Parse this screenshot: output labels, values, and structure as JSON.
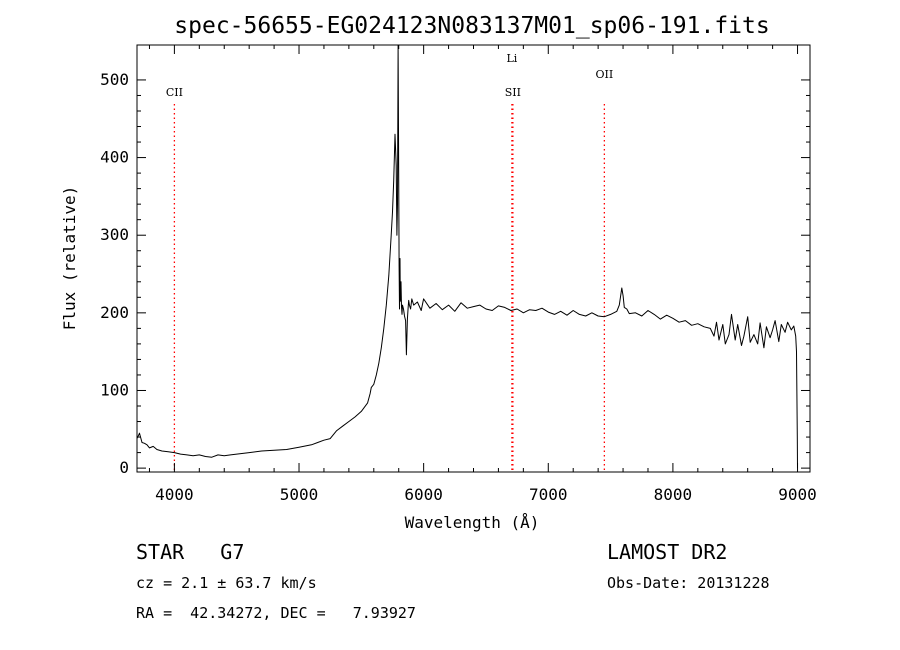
{
  "chart_data": {
    "type": "line",
    "title": "spec-56655-EG024123N083137M01_sp06-191.fits",
    "xlabel": "Wavelength (Å)",
    "ylabel": "Flux (relative)",
    "xlim": [
      3700,
      9100
    ],
    "ylim": [
      -5,
      545
    ],
    "xticks": [
      4000,
      5000,
      6000,
      7000,
      8000,
      9000
    ],
    "yticks": [
      0,
      100,
      200,
      300,
      400,
      500
    ],
    "grid": false,
    "line_color": "#000000",
    "marker_color": "#ff0000",
    "series": [
      {
        "x": [
          3700,
          3720,
          3740,
          3760,
          3780,
          3800,
          3830,
          3860,
          3900,
          3950,
          4000,
          4050,
          4100,
          4150,
          4200,
          4250,
          4300,
          4350,
          4400,
          4450,
          4500,
          4600,
          4700,
          4800,
          4900,
          5000,
          5100,
          5150,
          5200,
          5250,
          5300,
          5350,
          5400,
          5450,
          5500,
          5550,
          5570,
          5580,
          5600,
          5620,
          5640,
          5660,
          5680,
          5700,
          5720,
          5740,
          5750,
          5760,
          5770,
          5780,
          5785,
          5790,
          5795,
          5800,
          5803,
          5806,
          5810,
          5813,
          5818,
          5822,
          5826,
          5830,
          5838,
          5846,
          5855,
          5862,
          5870,
          5876,
          5880,
          5886,
          5895,
          5905,
          5920,
          5950,
          5980,
          6000,
          6050,
          6100,
          6150,
          6200,
          6250,
          6300,
          6350,
          6400,
          6450,
          6500,
          6550,
          6600,
          6650,
          6700,
          6750,
          6800,
          6850,
          6900,
          6950,
          7000,
          7050,
          7100,
          7150,
          7200,
          7250,
          7300,
          7350,
          7400,
          7450,
          7500,
          7550,
          7570,
          7590,
          7600,
          7610,
          7630,
          7650,
          7700,
          7750,
          7800,
          7850,
          7900,
          7950,
          8000,
          8050,
          8100,
          8150,
          8200,
          8250,
          8300,
          8330,
          8350,
          8370,
          8400,
          8420,
          8450,
          8470,
          8500,
          8520,
          8550,
          8570,
          8600,
          8620,
          8650,
          8680,
          8700,
          8730,
          8750,
          8780,
          8800,
          8820,
          8850,
          8870,
          8900,
          8920,
          8950,
          8970,
          8985,
          8992,
          8998,
          9000
        ],
        "y": [
          38,
          45,
          33,
          32,
          30,
          26,
          28,
          24,
          22,
          21,
          20,
          18,
          17,
          16,
          17,
          15,
          14,
          17,
          16,
          17,
          18,
          20,
          22,
          23,
          24,
          27,
          30,
          33,
          36,
          38,
          48,
          54,
          60,
          66,
          73,
          84,
          96,
          104,
          108,
          120,
          135,
          155,
          180,
          210,
          248,
          300,
          330,
          370,
          430,
          390,
          300,
          340,
          545,
          380,
          260,
          205,
          270,
          215,
          240,
          208,
          198,
          210,
          205,
          196,
          190,
          146,
          192,
          208,
          216,
          210,
          205,
          218,
          210,
          214,
          203,
          218,
          206,
          212,
          204,
          210,
          202,
          213,
          206,
          208,
          210,
          205,
          203,
          209,
          207,
          203,
          205,
          200,
          204,
          203,
          206,
          201,
          198,
          202,
          197,
          203,
          198,
          196,
          200,
          196,
          195,
          198,
          202,
          210,
          232,
          222,
          207,
          205,
          199,
          200,
          196,
          203,
          198,
          192,
          197,
          193,
          188,
          190,
          184,
          186,
          182,
          180,
          170,
          188,
          165,
          185,
          160,
          172,
          198,
          165,
          185,
          158,
          170,
          195,
          162,
          172,
          160,
          187,
          155,
          182,
          168,
          178,
          190,
          163,
          185,
          175,
          188,
          178,
          183,
          170,
          150,
          40,
          0
        ]
      }
    ],
    "line_markers": [
      {
        "label": "CII",
        "x": 4000
      },
      {
        "label": "Li",
        "x": 6708
      },
      {
        "label": "SII",
        "x": 6716
      },
      {
        "label": "OII",
        "x": 7450
      }
    ]
  },
  "info": {
    "class_line": "STAR   G7",
    "survey": "LAMOST DR2",
    "cz_line": "cz = 2.1 ± 63.7 km/s",
    "obs_date": "Obs-Date: 20131228",
    "coords_line": "RA =  42.34272, DEC =   7.93927"
  }
}
